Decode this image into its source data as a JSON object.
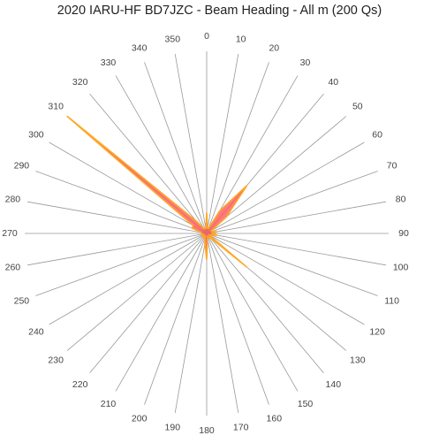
{
  "chart_data": {
    "type": "radar",
    "title": "2020 IARU-HF BD7JZC - Beam Heading - All m (200 Qs)",
    "angle_ticks": [
      "0",
      "10",
      "20",
      "30",
      "40",
      "50",
      "60",
      "70",
      "80",
      "90",
      "100",
      "110",
      "120",
      "130",
      "140",
      "150",
      "160",
      "170",
      "180",
      "190",
      "200",
      "210",
      "220",
      "230",
      "240",
      "250",
      "260",
      "270",
      "280",
      "290",
      "300",
      "310",
      "320",
      "330",
      "340",
      "350"
    ],
    "series": [
      {
        "values": [
          4,
          1,
          1,
          5,
          12,
          5,
          1,
          1,
          2,
          1,
          2,
          1,
          0.5,
          10,
          1,
          1,
          0.5,
          1,
          5,
          2,
          1,
          0.5,
          1,
          1,
          1,
          0.5,
          1,
          1,
          1,
          3,
          3,
          35,
          3,
          1,
          1,
          1
        ],
        "rmax": 35
      }
    ],
    "colors": {
      "fill": "#ff5a5a",
      "stroke": "#ffa726",
      "spoke": "#999999",
      "text": "#444444"
    }
  }
}
